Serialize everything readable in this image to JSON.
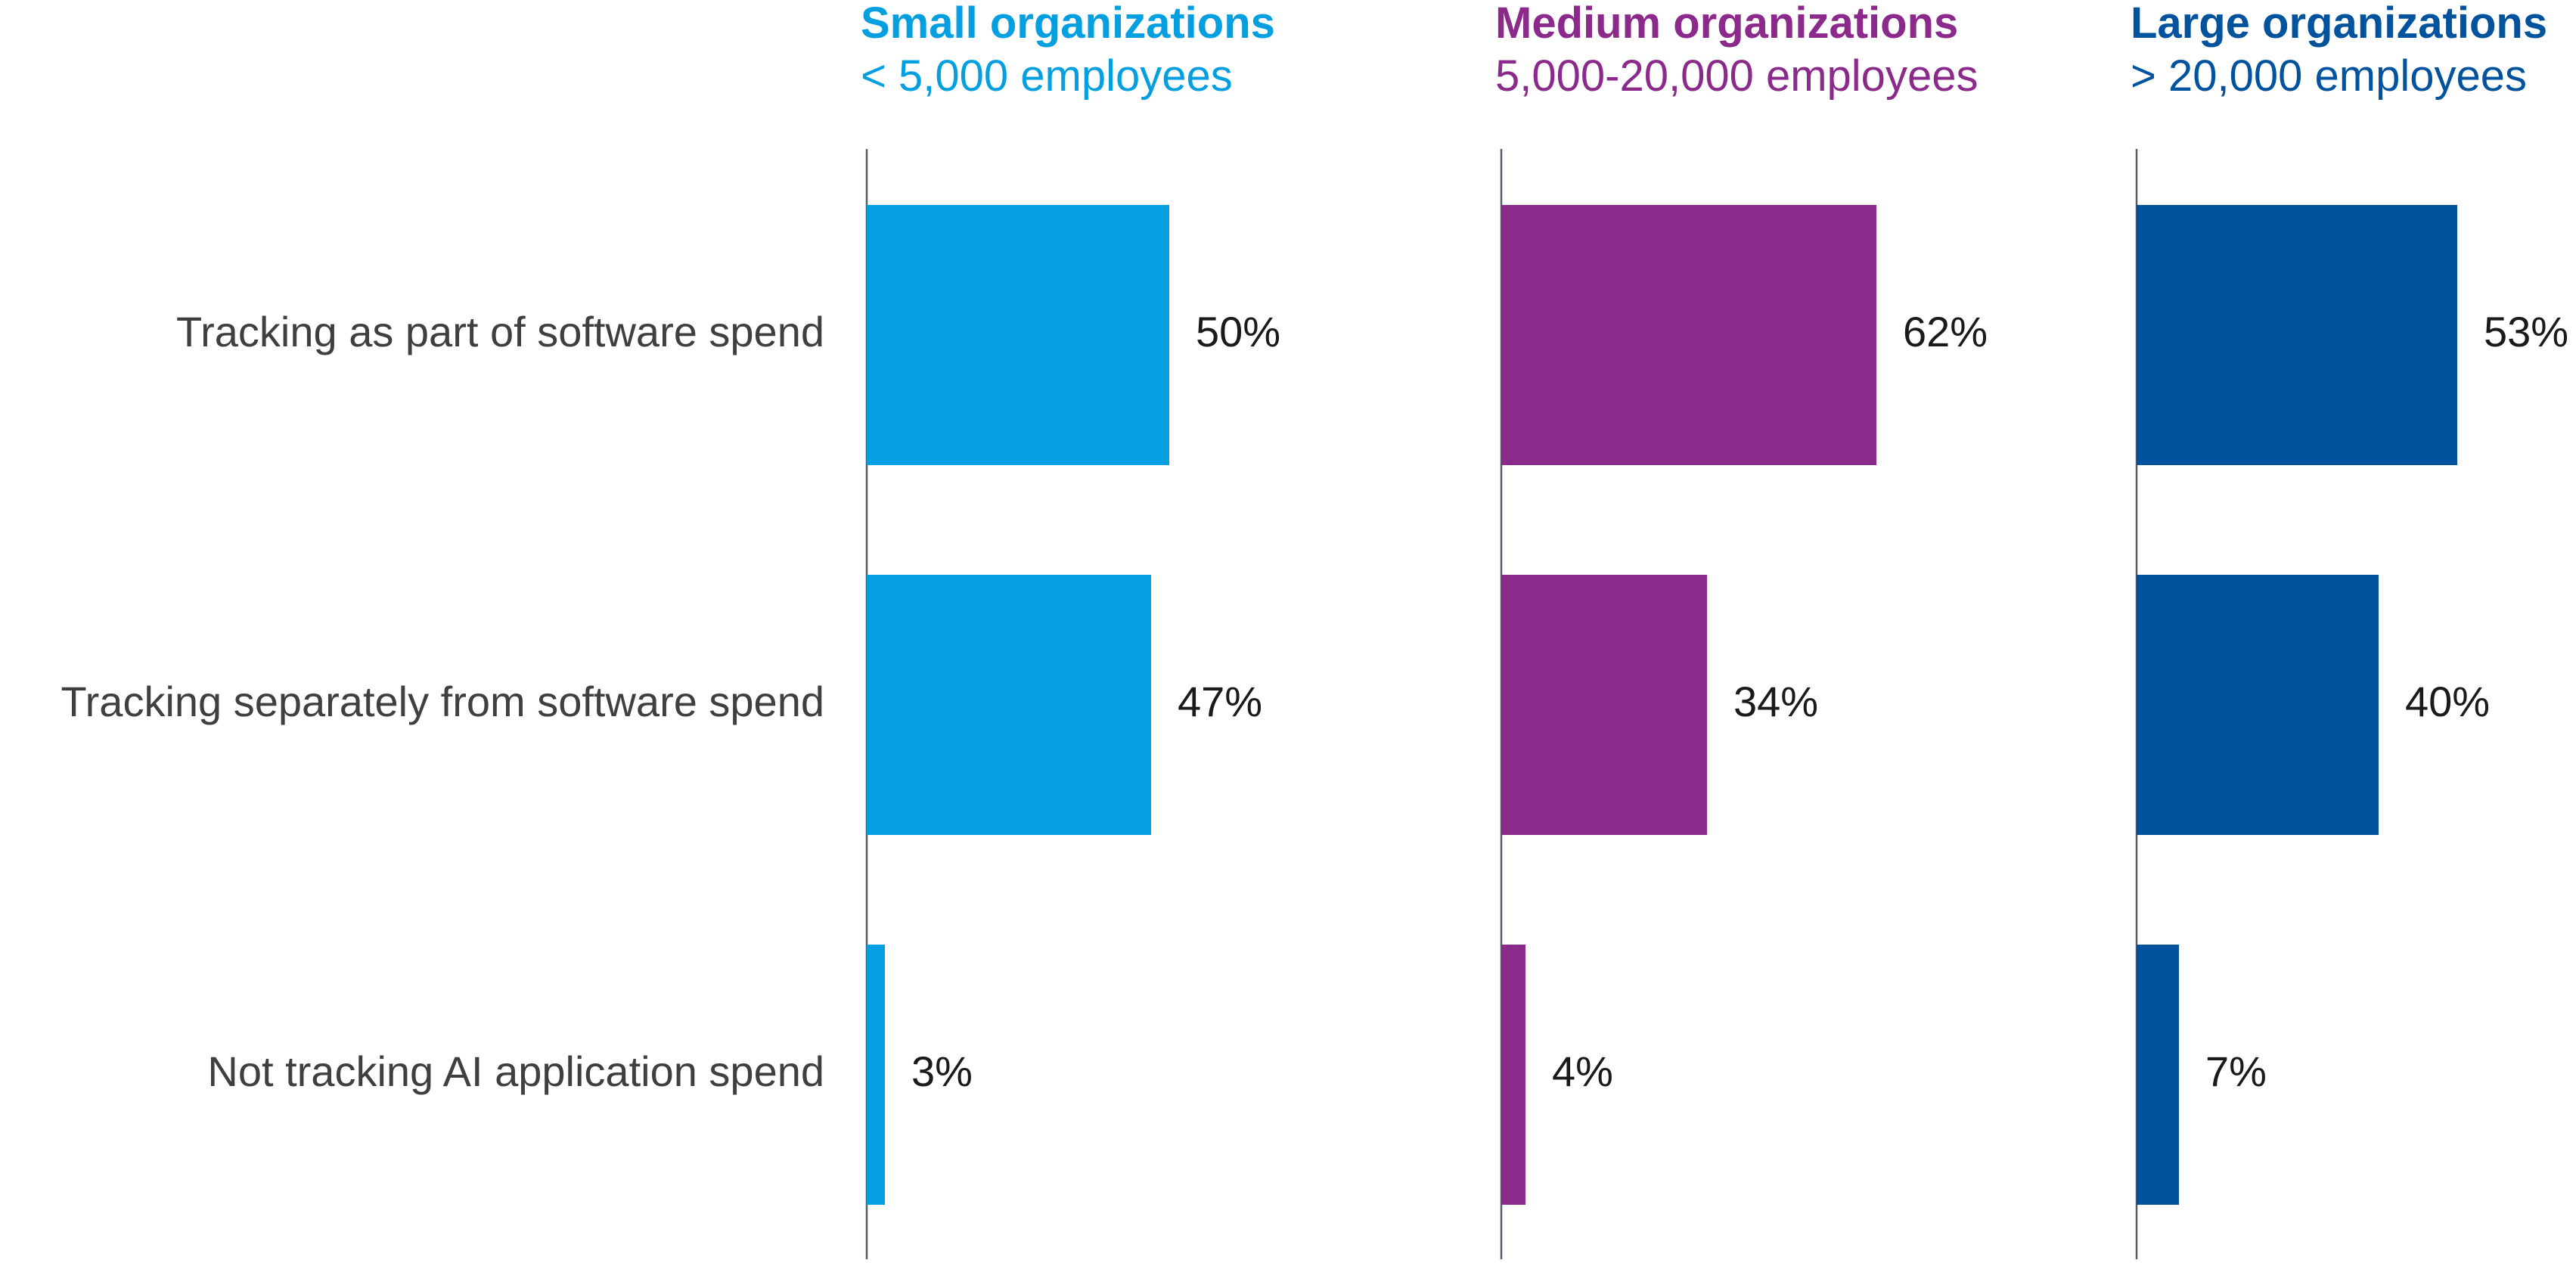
{
  "chart_data": {
    "type": "bar",
    "orientation": "horizontal",
    "categories": [
      "Tracking as part of software spend",
      "Tracking separately from software spend",
      "Not tracking AI application spend"
    ],
    "panels": [
      {
        "title": "Small organizations",
        "subtitle": "< 5,000 employees",
        "color": "#049fe0",
        "values": [
          50,
          47,
          3
        ],
        "labels": [
          "50%",
          "47%",
          "3%"
        ]
      },
      {
        "title": "Medium organizations",
        "subtitle": "5,000-20,000 employees",
        "color": "#8b2a8b",
        "values": [
          62,
          34,
          4
        ],
        "labels": [
          "62%",
          "34%",
          "4%"
        ]
      },
      {
        "title": "Large organizations",
        "subtitle": "> 20,000 employees",
        "color": "#02539e",
        "values": [
          53,
          40,
          7
        ],
        "labels": [
          "53%",
          "40%",
          "7%"
        ]
      }
    ],
    "xlim": [
      0,
      100
    ],
    "grid": false,
    "legend": "none"
  }
}
